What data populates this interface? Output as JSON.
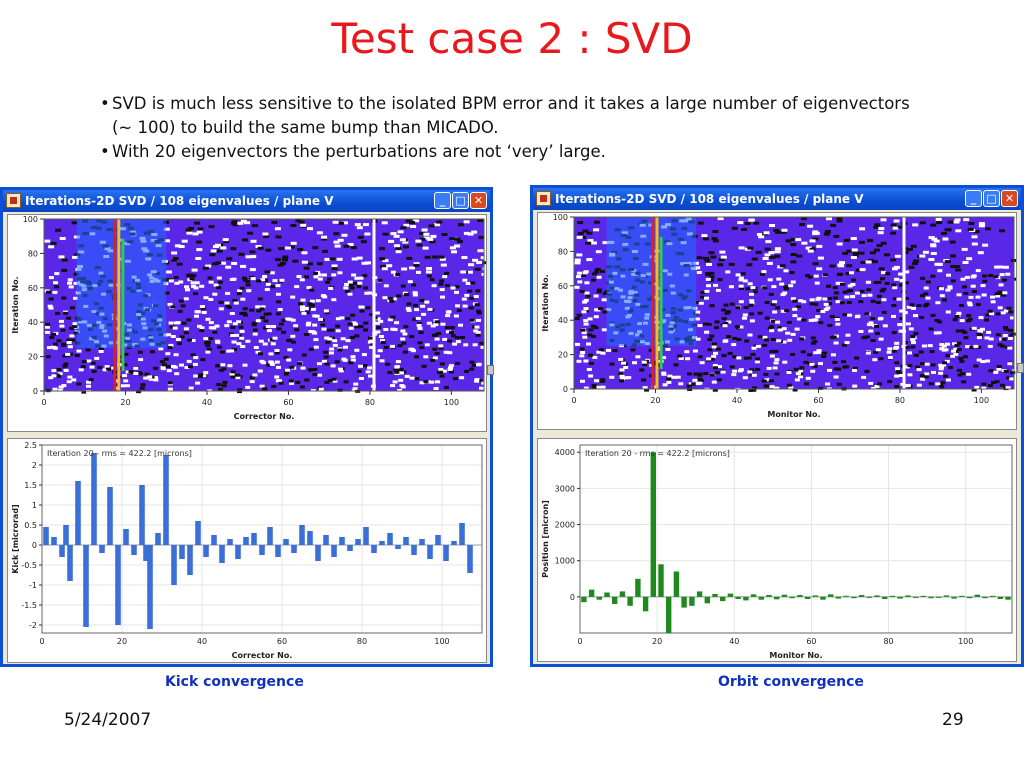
{
  "slide": {
    "title": "Test case 2 : SVD",
    "bullets": [
      "SVD is much less sensitive to the isolated BPM error and it takes a large number of eigenvectors (~ 100) to build the same bump than MICADO.",
      "With 20 eigenvectors the perturbations are not ‘very’ large."
    ],
    "footer_date": "5/24/2007",
    "page_number": "29"
  },
  "left_window": {
    "title": "Iterations-2D SVD / 108 eigenvalues / plane V",
    "caption": "Kick convergence",
    "heatmap": {
      "xlabel": "Corrector No.",
      "ylabel": "Iteration No.",
      "x_ticks": [
        "0",
        "20",
        "40",
        "60",
        "80",
        "100"
      ],
      "y_ticks": [
        "0",
        "20",
        "40",
        "60",
        "80",
        "100"
      ]
    },
    "bar_plot": {
      "annotation": "Iteration 20 - rms = 422.2 [microns]",
      "xlabel": "Corrector No.",
      "ylabel": "Kick [microrad]",
      "x_ticks": [
        "0",
        "20",
        "40",
        "60",
        "80",
        "100"
      ],
      "y_ticks": [
        "2.5",
        "2",
        "1.5",
        "1",
        "0.5",
        "0",
        "-0.5",
        "-1",
        "-1.5",
        "-2"
      ]
    }
  },
  "right_window": {
    "title": "Iterations-2D SVD / 108 eigenvalues / plane V",
    "caption": "Orbit convergence",
    "heatmap": {
      "xlabel": "Monitor No.",
      "ylabel": "Iteration No.",
      "x_ticks": [
        "0",
        "20",
        "40",
        "60",
        "80",
        "100"
      ],
      "y_ticks": [
        "0",
        "20",
        "40",
        "60",
        "80",
        "100"
      ]
    },
    "bar_plot": {
      "annotation": "Iteration 20 - rms = 422.2 [microns]",
      "xlabel": "Monitor No.",
      "ylabel": "Position [micron]",
      "x_ticks": [
        "0",
        "20",
        "40",
        "60",
        "80",
        "100"
      ],
      "y_ticks": [
        "4000",
        "3000",
        "2000",
        "1000",
        "0"
      ]
    }
  },
  "chart_data": [
    {
      "type": "heatmap",
      "xlabel": "Corrector No.",
      "ylabel": "Iteration No.",
      "xlim": [
        0,
        108
      ],
      "ylim": [
        0,
        100
      ],
      "colors": {
        "background": "#5a26e8",
        "hot": "#e02020",
        "mid": "#30c860",
        "cool": "#1f6bff"
      },
      "hot_columns": [
        17,
        18
      ]
    },
    {
      "type": "bar",
      "annotation": "Iteration 20 - rms = 422.2 [microns]",
      "xlabel": "Corrector No.",
      "ylabel": "Kick [microrad]",
      "xlim": [
        0,
        110
      ],
      "ylim": [
        -2.2,
        2.5
      ],
      "color": "#3a6fd8",
      "x": [
        1,
        3,
        5,
        6,
        7,
        9,
        11,
        13,
        15,
        17,
        19,
        21,
        23,
        25,
        26,
        27,
        29,
        31,
        33,
        35,
        37,
        39,
        41,
        43,
        45,
        47,
        49,
        51,
        53,
        55,
        57,
        59,
        61,
        63,
        65,
        67,
        69,
        71,
        73,
        75,
        77,
        79,
        81,
        83,
        85,
        87,
        89,
        91,
        93,
        95,
        97,
        99,
        101,
        103,
        105,
        107
      ],
      "values": [
        0.45,
        0.2,
        -0.3,
        0.5,
        -0.9,
        1.6,
        -2.05,
        2.3,
        -0.2,
        1.45,
        -2.0,
        0.4,
        -0.25,
        1.5,
        -0.4,
        -2.1,
        0.3,
        2.25,
        -1.0,
        -0.35,
        -0.75,
        0.6,
        -0.3,
        0.25,
        -0.45,
        0.15,
        -0.35,
        0.2,
        0.3,
        -0.25,
        0.45,
        -0.3,
        0.15,
        -0.2,
        0.5,
        0.35,
        -0.4,
        0.25,
        -0.3,
        0.2,
        -0.15,
        0.15,
        0.45,
        -0.2,
        0.1,
        0.3,
        -0.1,
        0.2,
        -0.25,
        0.15,
        -0.35,
        0.25,
        -0.4,
        0.1,
        0.55,
        -0.7
      ]
    },
    {
      "type": "heatmap",
      "xlabel": "Monitor No.",
      "ylabel": "Iteration No.",
      "xlim": [
        0,
        108
      ],
      "ylim": [
        0,
        100
      ],
      "colors": {
        "background": "#5a26e8",
        "hot": "#e02020",
        "mid": "#30c860",
        "cool": "#1f6bff"
      },
      "hot_columns": [
        19,
        20
      ]
    },
    {
      "type": "bar",
      "annotation": "Iteration 20 - rms = 422.2 [microns]",
      "xlabel": "Monitor No.",
      "ylabel": "Position [micron]",
      "xlim": [
        0,
        112
      ],
      "ylim": [
        -1000,
        4200
      ],
      "color": "#1e8a1e",
      "x": [
        1,
        3,
        5,
        7,
        9,
        11,
        13,
        15,
        17,
        19,
        21,
        23,
        25,
        27,
        29,
        31,
        33,
        35,
        37,
        39,
        41,
        43,
        45,
        47,
        49,
        51,
        53,
        55,
        57,
        59,
        61,
        63,
        65,
        67,
        69,
        71,
        73,
        75,
        77,
        79,
        81,
        83,
        85,
        87,
        89,
        91,
        93,
        95,
        97,
        99,
        101,
        103,
        105,
        107,
        109,
        111
      ],
      "values": [
        -150,
        200,
        -80,
        120,
        -200,
        150,
        -250,
        500,
        -400,
        4000,
        900,
        -1000,
        700,
        -300,
        -250,
        150,
        -180,
        80,
        -120,
        90,
        -60,
        -100,
        70,
        -80,
        50,
        -70,
        60,
        -40,
        50,
        -60,
        40,
        -80,
        70,
        -50,
        30,
        -40,
        50,
        -30,
        40,
        -60,
        30,
        -50,
        40,
        -30,
        30,
        -40,
        -30,
        40,
        -50,
        30,
        -40,
        60,
        -40,
        30,
        -60,
        -80
      ]
    }
  ]
}
